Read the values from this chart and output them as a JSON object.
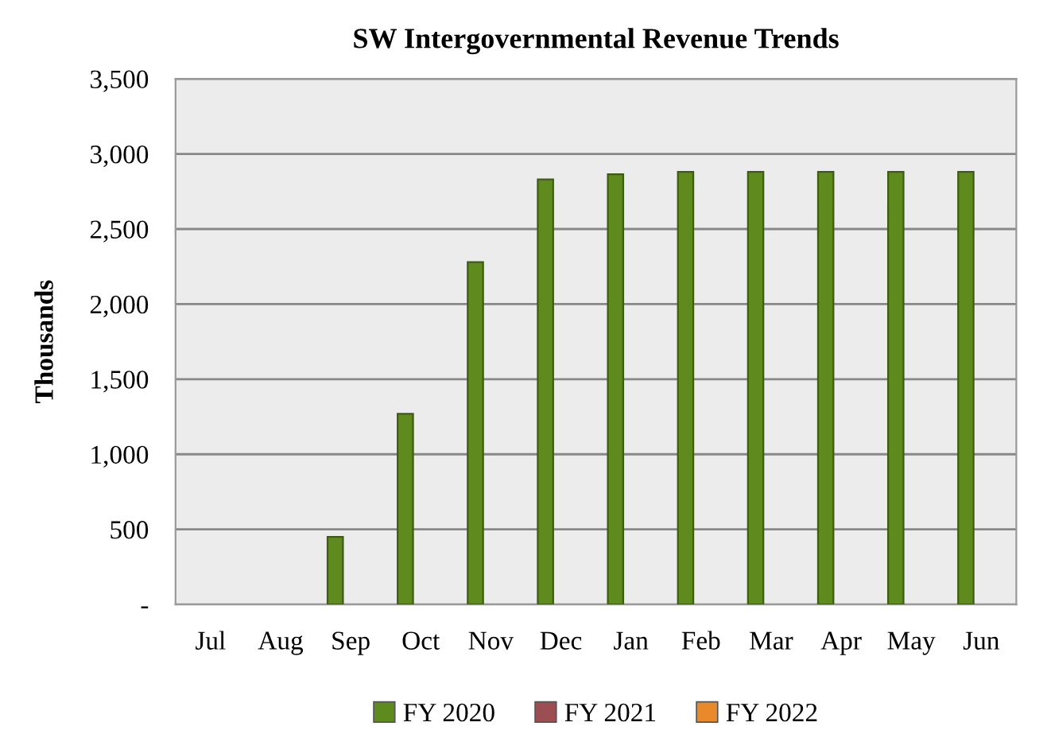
{
  "chart_data": {
    "type": "bar",
    "title": "SW Intergovernmental Revenue Trends",
    "ylabel": "Thousands",
    "categories": [
      "Jul",
      "Aug",
      "Sep",
      "Oct",
      "Nov",
      "Dec",
      "Jan",
      "Feb",
      "Mar",
      "Apr",
      "May",
      "Jun"
    ],
    "series": [
      {
        "name": "FY 2020",
        "color": "#5f8a1e",
        "values": [
          null,
          null,
          450,
          1270,
          2280,
          2830,
          2865,
          2880,
          2880,
          2880,
          2880,
          2880
        ]
      },
      {
        "name": "FY 2021",
        "color": "#9b4f52",
        "values": [
          null,
          null,
          null,
          null,
          null,
          null,
          null,
          null,
          null,
          null,
          null,
          null
        ]
      },
      {
        "name": "FY 2022",
        "color": "#e8892b",
        "values": [
          null,
          null,
          null,
          null,
          null,
          null,
          null,
          null,
          null,
          null,
          null,
          null
        ]
      }
    ],
    "ylim": [
      0,
      3500
    ],
    "yticks": [
      {
        "value": 0,
        "label": "-"
      },
      500,
      {
        "value": 1000,
        "label": "1,000"
      },
      {
        "value": 1500,
        "label": "1,500"
      },
      {
        "value": 2000,
        "label": "2,000"
      },
      {
        "value": 2500,
        "label": "2,500"
      },
      {
        "value": 3000,
        "label": "3,000"
      },
      {
        "value": 3500,
        "label": "3,500"
      }
    ],
    "grid": "y",
    "legend": "bottom"
  }
}
